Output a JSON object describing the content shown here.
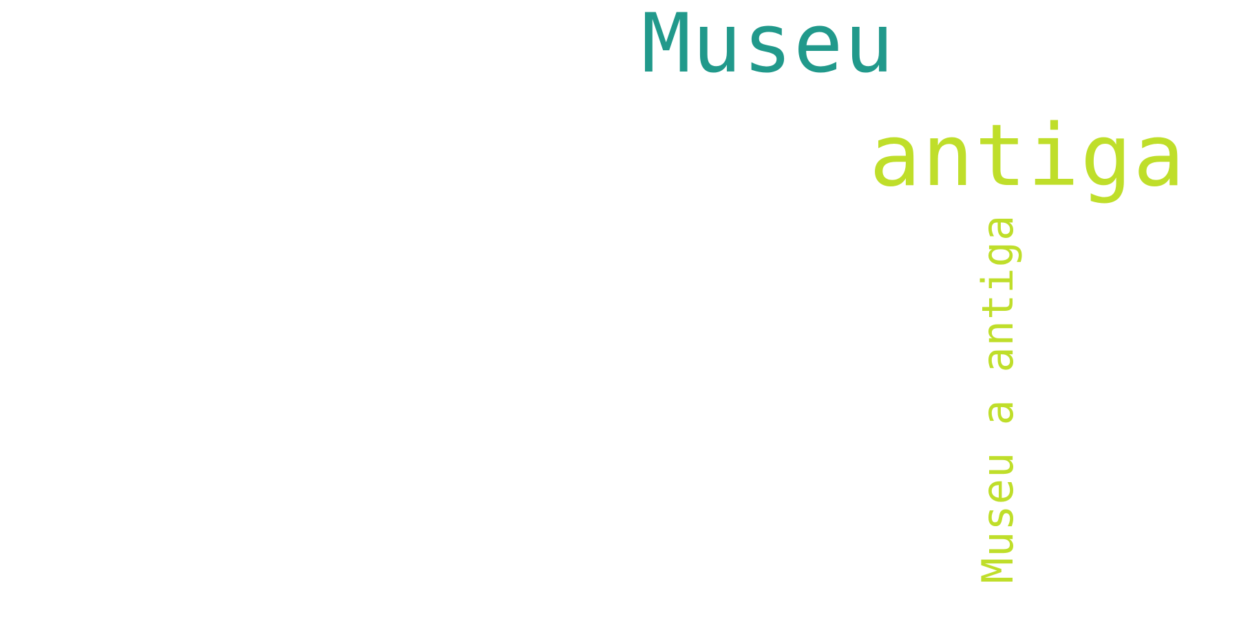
{
  "word_cloud": {
    "words": [
      {
        "text": "Museu",
        "color": "#21998b",
        "orientation": "horizontal"
      },
      {
        "text": "antiga",
        "color": "#bfde2a",
        "orientation": "horizontal"
      },
      {
        "text": "Museu a antiga",
        "color": "#bfde2a",
        "orientation": "vertical"
      }
    ]
  }
}
